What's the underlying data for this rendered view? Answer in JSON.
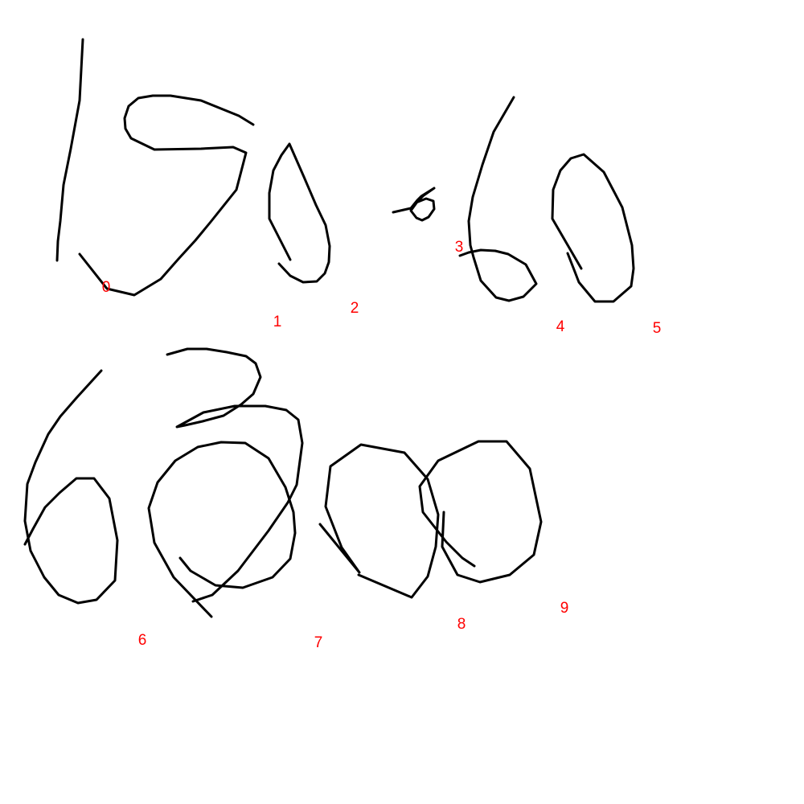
{
  "colors": {
    "background": "#ffffff",
    "ink": "#000000",
    "label": "#ff0000"
  },
  "strokes": [
    {
      "label": "0"
    },
    {
      "label": "1"
    },
    {
      "label": "2"
    },
    {
      "label": "3"
    },
    {
      "label": "4"
    },
    {
      "label": "5"
    },
    {
      "label": "6"
    },
    {
      "label": "7"
    },
    {
      "label": "8"
    },
    {
      "label": "9"
    }
  ]
}
